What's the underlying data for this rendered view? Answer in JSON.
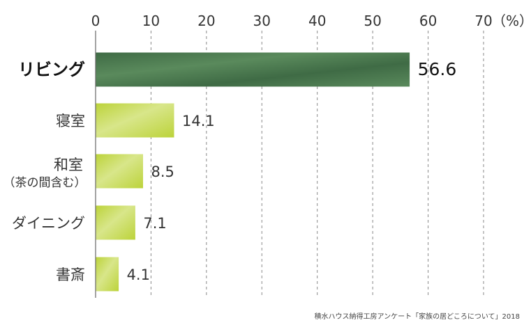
{
  "chart_data": {
    "type": "bar",
    "orientation": "horizontal",
    "categories": [
      {
        "name": "リビング",
        "sub": ""
      },
      {
        "name": "寝室",
        "sub": ""
      },
      {
        "name": "和室",
        "sub": "（茶の間含む）"
      },
      {
        "name": "ダイニング",
        "sub": ""
      },
      {
        "name": "書斎",
        "sub": ""
      }
    ],
    "values": [
      56.6,
      14.1,
      8.5,
      7.1,
      4.1
    ],
    "value_labels": [
      "56.6",
      "14.1",
      "8.5",
      "7.1",
      "4.1"
    ],
    "xlim": [
      0,
      70
    ],
    "ticks": [
      0,
      10,
      20,
      30,
      40,
      50,
      60,
      70
    ],
    "tick_labels": [
      "0",
      "10",
      "20",
      "30",
      "40",
      "50",
      "60",
      "70"
    ],
    "unit": "（%）",
    "grid": "vertical-dashed",
    "highlight_index": 0,
    "colors": {
      "highlight": "#3f6b45",
      "highlight_light": "#5a8a5c",
      "bar": "#bcd33a",
      "bar_light": "#d8e68a",
      "grid": "#888888",
      "axis": "#666666"
    }
  },
  "source": "積水ハウス納得工房アンケート「家族の居どころについて」2018"
}
